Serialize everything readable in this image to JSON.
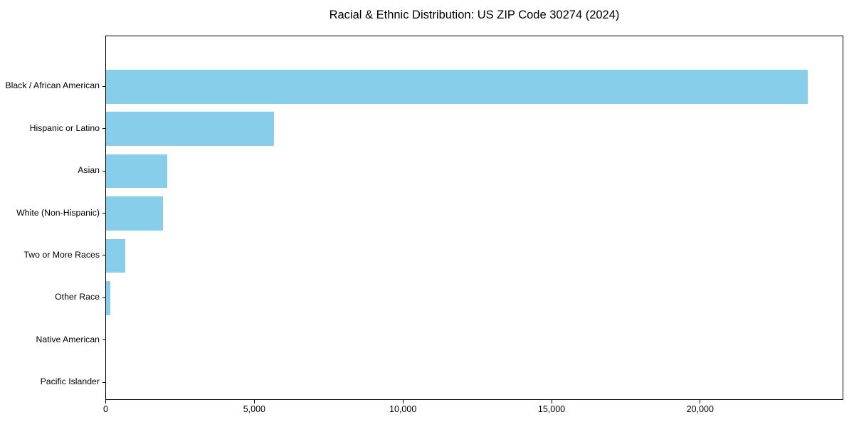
{
  "chart_data": {
    "type": "bar",
    "orientation": "horizontal",
    "title": "Racial & Ethnic Distribution: US ZIP Code 30274 (2024)",
    "categories": [
      "Black / African American",
      "Hispanic or Latino",
      "Asian",
      "White (Non-Hispanic)",
      "Two or More Races",
      "Other Race",
      "Native American",
      "Pacific Islander"
    ],
    "values": [
      23600,
      5640,
      2060,
      1910,
      650,
      140,
      0,
      0
    ],
    "xlabel": "",
    "ylabel": "",
    "xlim": [
      0,
      24780
    ],
    "xticks": [
      0,
      5000,
      10000,
      15000,
      20000
    ],
    "xtick_labels": [
      "0",
      "5,000",
      "10,000",
      "15,000",
      "20,000"
    ],
    "bar_color": "#87CEEB",
    "frame_color": "#000000",
    "text_color": "#000000",
    "background": "#ffffff",
    "grid": false,
    "legend": null
  }
}
